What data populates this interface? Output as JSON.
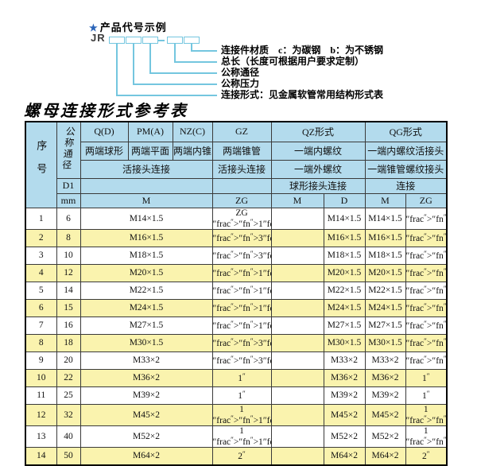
{
  "diagram": {
    "star": "★",
    "title": "产品代号示例",
    "prefix": "JR",
    "labels": [
      "连接件材质　c：为碳钢　b：为不锈钢",
      "总长（长度可根据用户要求定制）",
      "公称通径",
      "公称压力",
      "连接形式：见金属软管常用结构形式表"
    ]
  },
  "table": {
    "title": "螺母连接形式参考表",
    "header": {
      "seq": "序号",
      "dn": "公称通径",
      "d1": "D1",
      "mm": "mm",
      "q": "Q(D)",
      "q_desc": "两端球形",
      "pm": "PM(A)",
      "pm_desc": "两端平面",
      "nz": "NZ(C)",
      "nz_desc": "两端内锥",
      "gz": "GZ",
      "gz_desc": "两端锥管",
      "union_left": "活接头连接",
      "union_gz": "活接头连接",
      "qz": "QZ形式",
      "qz_desc1": "一端内螺纹",
      "qz_desc2": "一端外螺纹",
      "qz_desc3": "球形接头连接",
      "qg": "QG形式",
      "qg_desc1": "一端内螺纹活接头",
      "qg_desc2": "一端锥管螺纹接头",
      "qg_desc3": "连接",
      "m_span": "M",
      "gz_zg": "ZG",
      "qz_m": "M",
      "qz_d": "D",
      "qg_m": "M",
      "qg_zg": "ZG"
    },
    "rows": [
      {
        "no": "1",
        "dn": "6",
        "m": "M14×1.5",
        "gz": "ZG 1/4\"",
        "qz_m": "",
        "qz_d": "M14×1.5",
        "qg_m": "M14×1.5",
        "qg_zg": "1/4\""
      },
      {
        "no": "2",
        "dn": "8",
        "m": "M16×1.5",
        "gz": "3/8\"",
        "qz_m": "",
        "qz_d": "M16×1.5",
        "qg_m": "M16×1.5",
        "qg_zg": "3/8\""
      },
      {
        "no": "3",
        "dn": "10",
        "m": "M18×1.5",
        "gz": "3/8\"",
        "qz_m": "",
        "qz_d": "M18×1.5",
        "qg_m": "M18×1.5",
        "qg_zg": "3/8\""
      },
      {
        "no": "4",
        "dn": "12",
        "m": "M20×1.5",
        "gz": "1/2\"",
        "qz_m": "",
        "qz_d": "M20×1.5",
        "qg_m": "M20×1.5",
        "qg_zg": "1/2\""
      },
      {
        "no": "5",
        "dn": "14",
        "m": "M22×1.5",
        "gz": "1/2\"",
        "qz_m": "",
        "qz_d": "M22×1.5",
        "qg_m": "M22×1.5",
        "qg_zg": "1/2\""
      },
      {
        "no": "6",
        "dn": "15",
        "m": "M24×1.5",
        "gz": "1/2\"",
        "qz_m": "",
        "qz_d": "M24×1.5",
        "qg_m": "M24×1.5",
        "qg_zg": "1/2\""
      },
      {
        "no": "7",
        "dn": "16",
        "m": "M27×1.5",
        "gz": "1/2\"",
        "qz_m": "",
        "qz_d": "M27×1.5",
        "qg_m": "M27×1.5",
        "qg_zg": "1/2\""
      },
      {
        "no": "8",
        "dn": "18",
        "m": "M30×1.5",
        "gz": "3/4\"",
        "qz_m": "",
        "qz_d": "M30×1.5",
        "qg_m": "M30×1.5",
        "qg_zg": "3/4\""
      },
      {
        "no": "9",
        "dn": "20",
        "m": "M33×2",
        "gz": "3/4\"",
        "qz_m": "",
        "qz_d": "M33×2",
        "qg_m": "M33×2",
        "qg_zg": "3/4\""
      },
      {
        "no": "10",
        "dn": "22",
        "m": "M36×2",
        "gz": "1\"",
        "qz_m": "",
        "qz_d": "M36×2",
        "qg_m": "M36×2",
        "qg_zg": "1\""
      },
      {
        "no": "11",
        "dn": "25",
        "m": "M39×2",
        "gz": "1\"",
        "qz_m": "",
        "qz_d": "M39×2",
        "qg_m": "M39×2",
        "qg_zg": "1\""
      },
      {
        "no": "12",
        "dn": "32",
        "m": "M45×2",
        "gz": "1 1/4\"",
        "qz_m": "",
        "qz_d": "M45×2",
        "qg_m": "M45×2",
        "qg_zg": "1 1/4\""
      },
      {
        "no": "13",
        "dn": "40",
        "m": "M52×2",
        "gz": "1 1/2\"",
        "qz_m": "",
        "qz_d": "M52×2",
        "qg_m": "M52×2",
        "qg_zg": "1 1/2\""
      },
      {
        "no": "14",
        "dn": "50",
        "m": "M64×2",
        "gz": "2\"",
        "qz_m": "",
        "qz_d": "M64×2",
        "qg_m": "M64×2",
        "qg_zg": "2\""
      }
    ]
  },
  "colors": {
    "header_bg": "#b3dbed",
    "row_alt_bg": "#faf3ae",
    "diagram_line": "#74c6df",
    "star": "#2a64b8"
  }
}
